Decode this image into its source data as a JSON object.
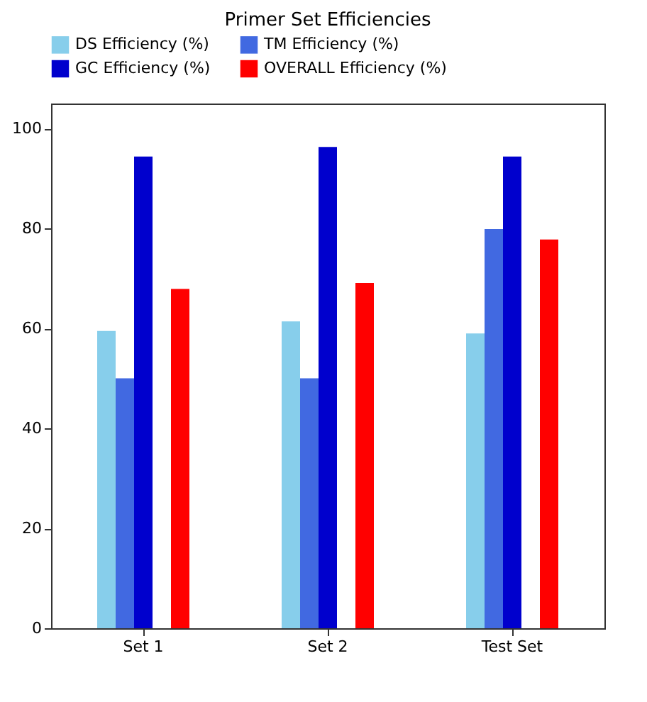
{
  "chart_data": {
    "type": "bar",
    "title": "Primer Set Efficiencies",
    "categories": [
      "Set 1",
      "Set 2",
      "Test Set"
    ],
    "series": [
      {
        "name": "DS Efficiency (%)",
        "color": "#87ceeb",
        "values": [
          59.5,
          61.4,
          59.0
        ]
      },
      {
        "name": "TM Efficiency (%)",
        "color": "#4169e1",
        "values": [
          50.0,
          50.0,
          79.9
        ]
      },
      {
        "name": "GC Efficiency (%)",
        "color": "#0000cd",
        "values": [
          94.4,
          96.3,
          94.4
        ]
      },
      {
        "values": [
          null,
          null,
          null
        ]
      },
      {
        "name": "OVERALL Efficiency (%)",
        "color": "#ff0000",
        "values": [
          67.9,
          69.1,
          77.8
        ]
      }
    ],
    "ylim": [
      0,
      105
    ],
    "yticks": [
      0,
      20,
      40,
      60,
      80,
      100
    ],
    "grid": false,
    "legend": "top"
  }
}
